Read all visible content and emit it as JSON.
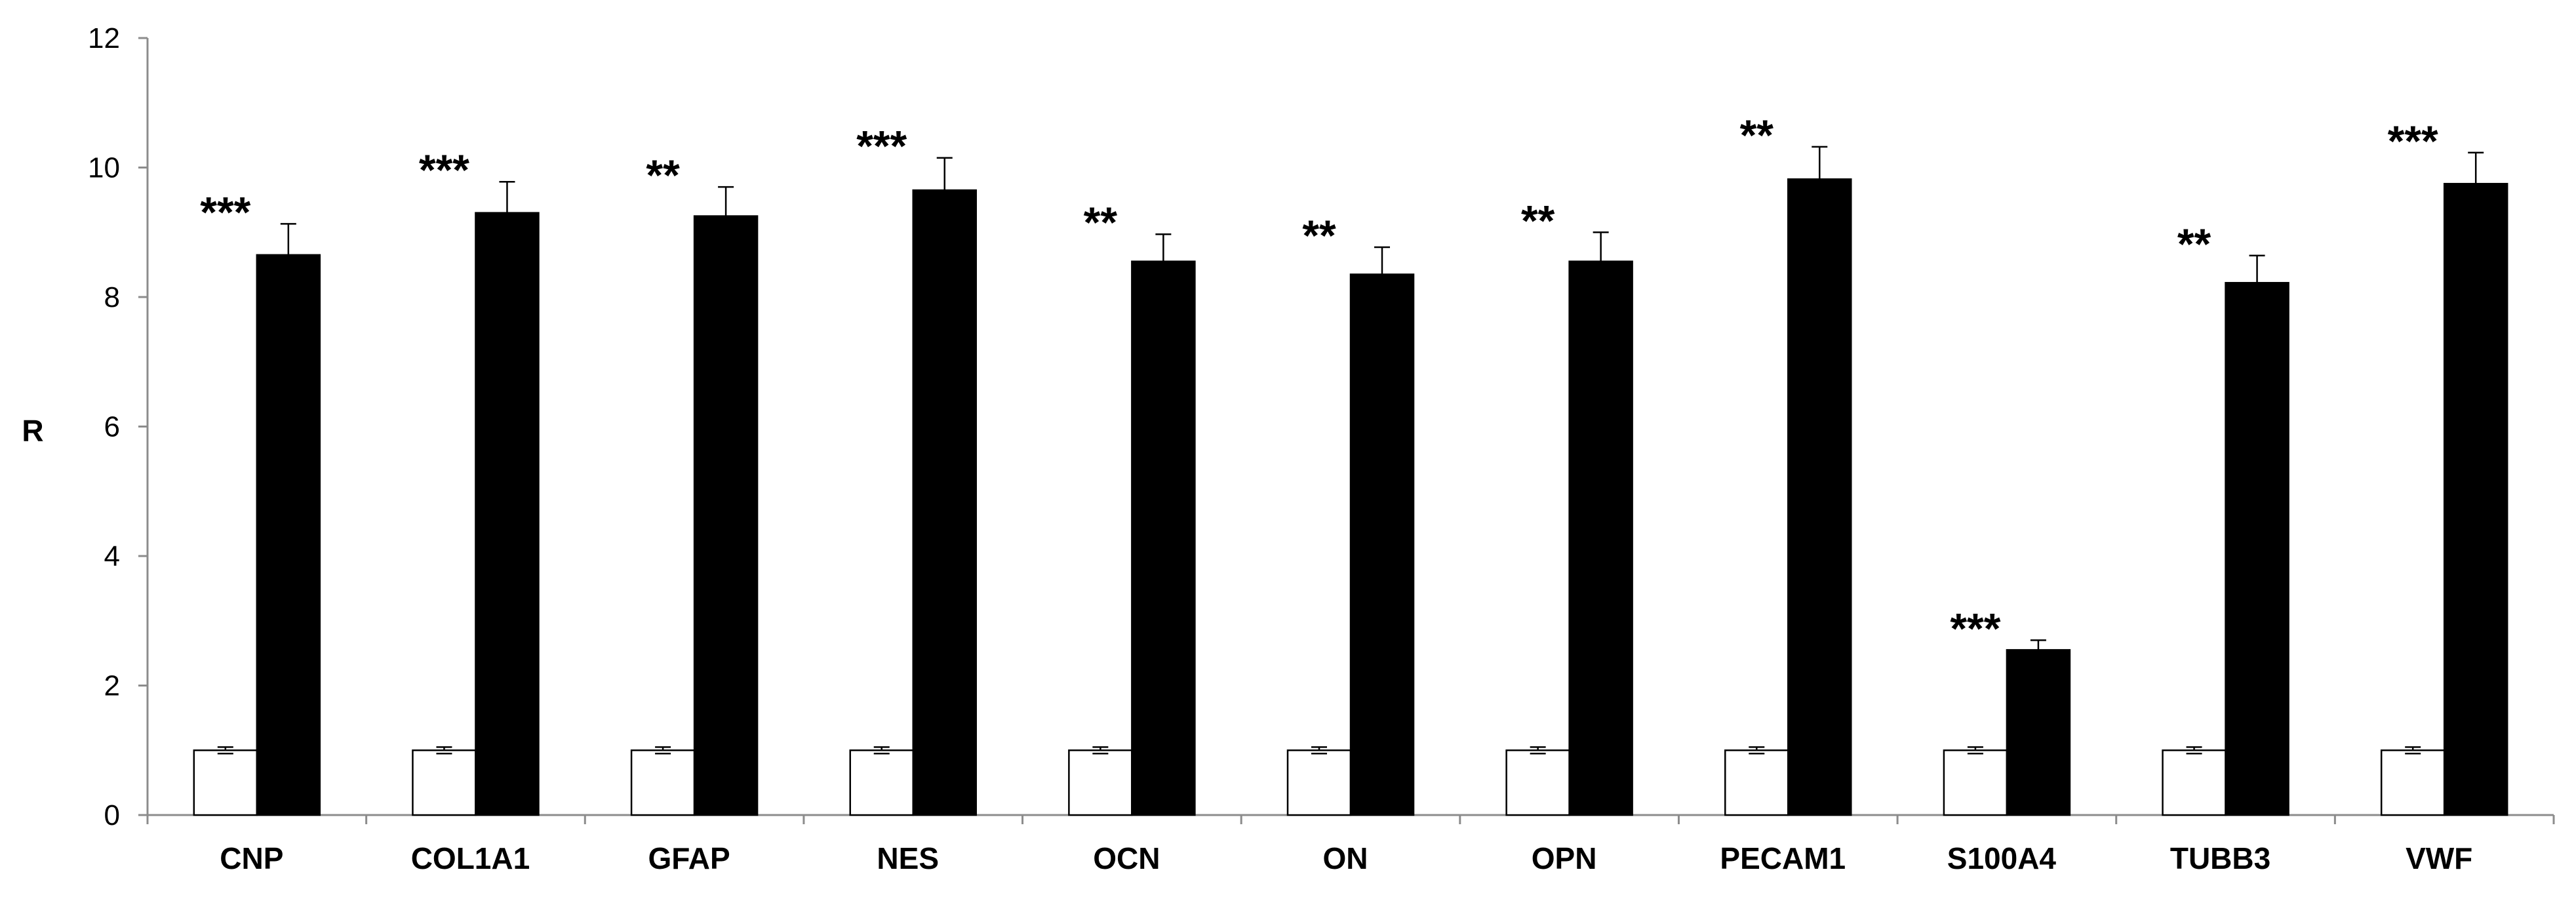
{
  "chart_data": {
    "type": "bar",
    "title": "",
    "xlabel": "",
    "ylabel": "R",
    "ylim": [
      0,
      12
    ],
    "yticks": [
      0,
      2,
      4,
      6,
      8,
      10,
      12
    ],
    "grid": false,
    "legend": "none",
    "categories": [
      "CNP",
      "COL1A1",
      "GFAP",
      "NES",
      "OCN",
      "ON",
      "OPN",
      "PECAM1",
      "S100A4",
      "TUBB3",
      "VWF"
    ],
    "series": [
      {
        "fill": "#ffffff",
        "values": [
          1,
          1,
          1,
          1,
          1,
          1,
          1,
          1,
          1,
          1,
          1
        ],
        "errors": [
          0.05,
          0.05,
          0.05,
          0.05,
          0.05,
          0.05,
          0.05,
          0.05,
          0.05,
          0.05,
          0.05
        ]
      },
      {
        "fill": "#000000",
        "values": [
          8.65,
          9.3,
          9.25,
          9.65,
          8.55,
          8.35,
          8.55,
          9.82,
          2.55,
          8.22,
          9.75
        ],
        "errors": [
          0.48,
          0.48,
          0.45,
          0.5,
          0.42,
          0.42,
          0.45,
          0.5,
          0.15,
          0.42,
          0.48
        ]
      }
    ],
    "significance": [
      "***",
      "***",
      "**",
      "***",
      "**",
      "**",
      "**",
      "**",
      "***",
      "**",
      "***"
    ]
  }
}
